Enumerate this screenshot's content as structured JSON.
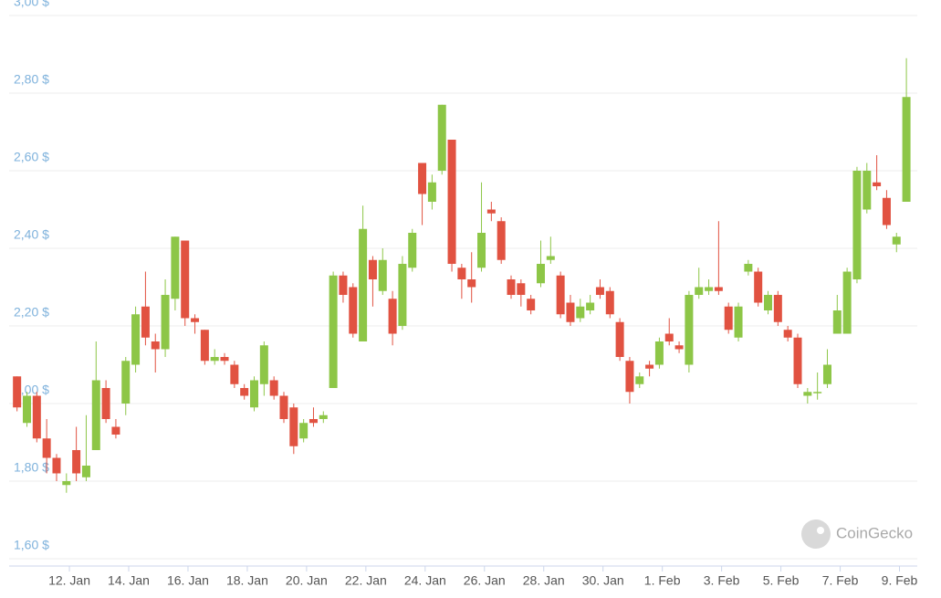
{
  "chart_data": {
    "type": "candlestick",
    "up_color": "#8dc647",
    "down_color": "#e15241",
    "open": [
      2.07,
      1.95,
      2.02,
      1.91,
      1.86,
      1.79,
      1.88,
      1.81,
      1.88,
      2.04,
      1.94,
      2.0,
      2.1,
      2.25,
      2.16,
      2.14,
      2.27,
      2.42,
      2.22,
      2.19,
      2.11,
      2.12,
      2.1,
      2.04,
      1.99,
      2.05,
      2.06,
      2.02,
      1.99,
      1.91,
      1.96,
      1.96,
      2.04,
      2.33,
      2.3,
      2.16,
      2.37,
      2.29,
      2.27,
      2.2,
      2.35,
      2.62,
      2.52,
      2.6,
      2.68,
      2.35,
      2.32,
      2.35,
      2.5,
      2.47,
      2.32,
      2.31,
      2.27,
      2.31,
      2.37,
      2.33,
      2.26,
      2.22,
      2.24,
      2.3,
      2.29,
      2.21,
      2.11,
      2.05,
      2.1,
      2.1,
      2.18,
      2.15,
      2.1,
      2.28,
      2.29,
      2.3,
      2.25,
      2.17,
      2.34,
      2.34,
      2.24,
      2.28,
      2.19,
      2.17,
      2.02,
      2.03,
      2.05,
      2.18,
      2.18,
      2.32,
      2.5,
      2.57,
      2.53,
      2.41,
      2.52
    ],
    "high": [
      2.07,
      2.03,
      2.03,
      1.96,
      1.87,
      1.82,
      1.94,
      1.97,
      2.16,
      2.06,
      1.96,
      2.12,
      2.25,
      2.34,
      2.18,
      2.32,
      2.43,
      2.42,
      2.23,
      2.19,
      2.14,
      2.13,
      2.11,
      2.05,
      2.07,
      2.16,
      2.07,
      2.03,
      2.0,
      1.96,
      1.99,
      1.98,
      2.34,
      2.34,
      2.31,
      2.51,
      2.38,
      2.4,
      2.29,
      2.38,
      2.45,
      2.62,
      2.59,
      2.77,
      2.68,
      2.36,
      2.39,
      2.57,
      2.52,
      2.48,
      2.33,
      2.32,
      2.28,
      2.42,
      2.43,
      2.34,
      2.28,
      2.27,
      2.28,
      2.32,
      2.3,
      2.22,
      2.12,
      2.08,
      2.11,
      2.17,
      2.22,
      2.16,
      2.29,
      2.35,
      2.32,
      2.47,
      2.26,
      2.26,
      2.37,
      2.35,
      2.29,
      2.29,
      2.2,
      2.18,
      2.04,
      2.08,
      2.14,
      2.28,
      2.35,
      2.61,
      2.62,
      2.64,
      2.55,
      2.44,
      2.89
    ],
    "low": [
      1.98,
      1.94,
      1.9,
      1.82,
      1.8,
      1.77,
      1.8,
      1.8,
      1.88,
      1.95,
      1.91,
      1.97,
      2.08,
      2.15,
      2.08,
      2.12,
      2.24,
      2.2,
      2.18,
      2.1,
      2.1,
      2.1,
      2.04,
      2.01,
      1.98,
      2.02,
      2.01,
      1.95,
      1.87,
      1.9,
      1.94,
      1.95,
      2.04,
      2.26,
      2.17,
      2.16,
      2.25,
      2.28,
      2.15,
      2.19,
      2.34,
      2.46,
      2.5,
      2.59,
      2.34,
      2.27,
      2.26,
      2.34,
      2.47,
      2.36,
      2.27,
      2.25,
      2.23,
      2.3,
      2.36,
      2.22,
      2.2,
      2.21,
      2.23,
      2.27,
      2.22,
      2.11,
      2.0,
      2.04,
      2.07,
      2.09,
      2.15,
      2.13,
      2.08,
      2.27,
      2.28,
      2.28,
      2.18,
      2.16,
      2.33,
      2.25,
      2.23,
      2.2,
      2.16,
      2.04,
      2.0,
      2.01,
      2.04,
      2.18,
      2.18,
      2.31,
      2.49,
      2.55,
      2.45,
      2.39,
      2.52
    ],
    "close": [
      1.99,
      2.02,
      1.91,
      1.86,
      1.82,
      1.8,
      1.82,
      1.84,
      2.06,
      1.96,
      1.92,
      2.11,
      2.23,
      2.17,
      2.14,
      2.28,
      2.43,
      2.22,
      2.21,
      2.11,
      2.12,
      2.11,
      2.05,
      2.02,
      2.06,
      2.15,
      2.02,
      1.96,
      1.89,
      1.95,
      1.95,
      1.97,
      2.33,
      2.28,
      2.18,
      2.45,
      2.32,
      2.37,
      2.18,
      2.36,
      2.44,
      2.54,
      2.57,
      2.77,
      2.36,
      2.32,
      2.3,
      2.44,
      2.49,
      2.37,
      2.28,
      2.28,
      2.24,
      2.36,
      2.38,
      2.23,
      2.21,
      2.25,
      2.26,
      2.28,
      2.23,
      2.12,
      2.03,
      2.07,
      2.09,
      2.16,
      2.16,
      2.14,
      2.28,
      2.3,
      2.3,
      2.29,
      2.19,
      2.25,
      2.36,
      2.26,
      2.28,
      2.21,
      2.17,
      2.05,
      2.03,
      2.03,
      2.1,
      2.24,
      2.34,
      2.6,
      2.6,
      2.56,
      2.46,
      2.43,
      2.79
    ],
    "xlim": [
      -0.8,
      91.1
    ],
    "xticks": [
      {
        "value": 5.3,
        "label": "12. Jan"
      },
      {
        "value": 11.3,
        "label": "14. Jan"
      },
      {
        "value": 17.3,
        "label": "16. Jan"
      },
      {
        "value": 23.3,
        "label": "18. Jan"
      },
      {
        "value": 29.3,
        "label": "20. Jan"
      },
      {
        "value": 35.3,
        "label": "22. Jan"
      },
      {
        "value": 41.3,
        "label": "24. Jan"
      },
      {
        "value": 47.3,
        "label": "26. Jan"
      },
      {
        "value": 53.3,
        "label": "28. Jan"
      },
      {
        "value": 59.3,
        "label": "30. Jan"
      },
      {
        "value": 65.3,
        "label": "1. Feb"
      },
      {
        "value": 71.3,
        "label": "3. Feb"
      },
      {
        "value": 77.3,
        "label": "5. Feb"
      },
      {
        "value": 83.3,
        "label": "7. Feb"
      },
      {
        "value": 89.3,
        "label": "9. Feb"
      }
    ],
    "ylim": [
      1.6,
      3.0
    ],
    "yticks": [
      {
        "value": 1.6,
        "label": "1,60 $"
      },
      {
        "value": 1.8,
        "label": "1,80 $"
      },
      {
        "value": 2.0,
        "label": "2,00 $"
      },
      {
        "value": 2.2,
        "label": "2,20 $"
      },
      {
        "value": 2.4,
        "label": "2,40 $"
      },
      {
        "value": 2.6,
        "label": "2,60 $"
      },
      {
        "value": 2.8,
        "label": "2,80 $"
      },
      {
        "value": 3.0,
        "label": "3,00 $"
      }
    ],
    "grid": true,
    "watermark": "CoinGecko"
  }
}
